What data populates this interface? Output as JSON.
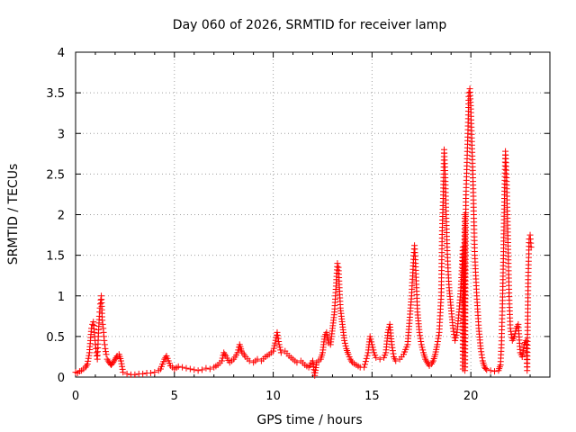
{
  "chart_data": {
    "type": "scatter",
    "title": "Day 060 of 2026, SRMTID for receiver lamp",
    "xlabel": "GPS time / hours",
    "ylabel": "SRMTID / TECUs",
    "xlim": [
      0,
      24
    ],
    "ylim": [
      0,
      4
    ],
    "xticks": [
      0,
      5,
      10,
      15,
      20
    ],
    "yticks": [
      0,
      0.5,
      1,
      1.5,
      2,
      2.5,
      3,
      3.5,
      4
    ],
    "xtick_labels": [
      "0",
      "5",
      "10",
      "15",
      "20"
    ],
    "ytick_labels": [
      "0",
      "0.5",
      "1",
      "1.5",
      "2",
      "2.5",
      "3",
      "3.5",
      "4"
    ],
    "grid": true,
    "marker": "+",
    "series": [
      {
        "name": "SRMTID",
        "color": "#ff0000",
        "points": [
          [
            0.0,
            0.06
          ],
          [
            0.1,
            0.05
          ],
          [
            0.2,
            0.07
          ],
          [
            0.3,
            0.08
          ],
          [
            0.4,
            0.1
          ],
          [
            0.5,
            0.12
          ],
          [
            0.6,
            0.16
          ],
          [
            0.7,
            0.3
          ],
          [
            0.8,
            0.6
          ],
          [
            0.85,
            0.65
          ],
          [
            0.9,
            0.68
          ],
          [
            0.95,
            0.55
          ],
          [
            1.0,
            0.4
          ],
          [
            1.05,
            0.3
          ],
          [
            1.1,
            0.22
          ],
          [
            1.15,
            0.5
          ],
          [
            1.2,
            0.75
          ],
          [
            1.25,
            0.9
          ],
          [
            1.3,
            1.0
          ],
          [
            1.35,
            0.7
          ],
          [
            1.4,
            0.6
          ],
          [
            1.45,
            0.45
          ],
          [
            1.5,
            0.35
          ],
          [
            1.55,
            0.28
          ],
          [
            1.6,
            0.22
          ],
          [
            1.7,
            0.18
          ],
          [
            1.8,
            0.15
          ],
          [
            1.9,
            0.18
          ],
          [
            2.0,
            0.22
          ],
          [
            2.1,
            0.26
          ],
          [
            2.2,
            0.28
          ],
          [
            2.3,
            0.2
          ],
          [
            2.4,
            0.06
          ],
          [
            2.6,
            0.04
          ],
          [
            2.8,
            0.03
          ],
          [
            3.0,
            0.03
          ],
          [
            3.2,
            0.04
          ],
          [
            3.4,
            0.04
          ],
          [
            3.6,
            0.05
          ],
          [
            3.8,
            0.05
          ],
          [
            4.0,
            0.06
          ],
          [
            4.2,
            0.08
          ],
          [
            4.3,
            0.1
          ],
          [
            4.4,
            0.16
          ],
          [
            4.5,
            0.22
          ],
          [
            4.6,
            0.26
          ],
          [
            4.7,
            0.2
          ],
          [
            4.8,
            0.14
          ],
          [
            5.0,
            0.1
          ],
          [
            5.2,
            0.13
          ],
          [
            5.4,
            0.12
          ],
          [
            5.6,
            0.11
          ],
          [
            5.8,
            0.1
          ],
          [
            6.0,
            0.09
          ],
          [
            6.2,
            0.08
          ],
          [
            6.4,
            0.09
          ],
          [
            6.6,
            0.11
          ],
          [
            6.8,
            0.1
          ],
          [
            7.0,
            0.12
          ],
          [
            7.2,
            0.15
          ],
          [
            7.4,
            0.2
          ],
          [
            7.5,
            0.3
          ],
          [
            7.6,
            0.26
          ],
          [
            7.8,
            0.18
          ],
          [
            8.0,
            0.22
          ],
          [
            8.2,
            0.3
          ],
          [
            8.3,
            0.4
          ],
          [
            8.4,
            0.32
          ],
          [
            8.6,
            0.25
          ],
          [
            8.8,
            0.2
          ],
          [
            9.0,
            0.18
          ],
          [
            9.2,
            0.22
          ],
          [
            9.4,
            0.2
          ],
          [
            9.6,
            0.25
          ],
          [
            9.8,
            0.28
          ],
          [
            10.0,
            0.32
          ],
          [
            10.1,
            0.42
          ],
          [
            10.2,
            0.55
          ],
          [
            10.3,
            0.4
          ],
          [
            10.4,
            0.3
          ],
          [
            10.6,
            0.32
          ],
          [
            10.8,
            0.26
          ],
          [
            11.0,
            0.22
          ],
          [
            11.2,
            0.18
          ],
          [
            11.4,
            0.2
          ],
          [
            11.6,
            0.15
          ],
          [
            11.8,
            0.12
          ],
          [
            12.0,
            0.2
          ],
          [
            12.1,
            0.02
          ],
          [
            12.2,
            0.18
          ],
          [
            12.4,
            0.22
          ],
          [
            12.5,
            0.3
          ],
          [
            12.6,
            0.5
          ],
          [
            12.7,
            0.55
          ],
          [
            12.8,
            0.42
          ],
          [
            12.9,
            0.4
          ],
          [
            13.0,
            0.6
          ],
          [
            13.1,
            0.8
          ],
          [
            13.2,
            1.2
          ],
          [
            13.25,
            1.4
          ],
          [
            13.3,
            1.35
          ],
          [
            13.35,
            1.1
          ],
          [
            13.4,
            0.85
          ],
          [
            13.5,
            0.65
          ],
          [
            13.6,
            0.45
          ],
          [
            13.7,
            0.35
          ],
          [
            13.8,
            0.28
          ],
          [
            13.9,
            0.22
          ],
          [
            14.0,
            0.18
          ],
          [
            14.2,
            0.15
          ],
          [
            14.4,
            0.12
          ],
          [
            14.6,
            0.12
          ],
          [
            14.8,
            0.3
          ],
          [
            14.9,
            0.5
          ],
          [
            15.0,
            0.4
          ],
          [
            15.1,
            0.3
          ],
          [
            15.2,
            0.24
          ],
          [
            15.4,
            0.22
          ],
          [
            15.6,
            0.24
          ],
          [
            15.7,
            0.3
          ],
          [
            15.8,
            0.55
          ],
          [
            15.9,
            0.65
          ],
          [
            16.0,
            0.4
          ],
          [
            16.1,
            0.25
          ],
          [
            16.2,
            0.2
          ],
          [
            16.4,
            0.22
          ],
          [
            16.6,
            0.28
          ],
          [
            16.8,
            0.4
          ],
          [
            16.9,
            0.7
          ],
          [
            17.0,
            1.0
          ],
          [
            17.1,
            1.45
          ],
          [
            17.15,
            1.62
          ],
          [
            17.2,
            1.4
          ],
          [
            17.25,
            1.1
          ],
          [
            17.3,
            0.8
          ],
          [
            17.4,
            0.55
          ],
          [
            17.5,
            0.4
          ],
          [
            17.6,
            0.3
          ],
          [
            17.7,
            0.22
          ],
          [
            17.8,
            0.18
          ],
          [
            17.9,
            0.14
          ],
          [
            18.0,
            0.16
          ],
          [
            18.1,
            0.2
          ],
          [
            18.2,
            0.28
          ],
          [
            18.3,
            0.4
          ],
          [
            18.4,
            0.55
          ],
          [
            18.5,
            1.0
          ],
          [
            18.55,
            1.8
          ],
          [
            18.6,
            2.2
          ],
          [
            18.65,
            2.8
          ],
          [
            18.7,
            2.5
          ],
          [
            18.75,
            2.0
          ],
          [
            18.8,
            1.6
          ],
          [
            18.85,
            1.3
          ],
          [
            18.9,
            1.1
          ],
          [
            19.0,
            0.85
          ],
          [
            19.1,
            0.6
          ],
          [
            19.2,
            0.45
          ],
          [
            19.3,
            0.55
          ],
          [
            19.4,
            0.8
          ],
          [
            19.5,
            1.1
          ],
          [
            19.6,
            1.6
          ],
          [
            19.7,
            2.0
          ],
          [
            19.75,
            2.2
          ],
          [
            19.8,
            2.6
          ],
          [
            19.85,
            3.0
          ],
          [
            19.9,
            3.5
          ],
          [
            19.95,
            3.55
          ],
          [
            20.0,
            3.3
          ],
          [
            20.05,
            2.9
          ],
          [
            20.1,
            2.5
          ],
          [
            20.15,
            2.0
          ],
          [
            20.2,
            1.5
          ],
          [
            20.3,
            1.0
          ],
          [
            20.4,
            0.6
          ],
          [
            20.5,
            0.35
          ],
          [
            19.6,
            0.1
          ],
          [
            19.7,
            0.08
          ],
          [
            20.6,
            0.2
          ],
          [
            20.7,
            0.12
          ],
          [
            20.8,
            0.09
          ],
          [
            21.0,
            0.08
          ],
          [
            21.2,
            0.07
          ],
          [
            21.4,
            0.08
          ],
          [
            21.5,
            0.15
          ],
          [
            21.55,
            0.4
          ],
          [
            21.6,
            0.9
          ],
          [
            21.65,
            1.5
          ],
          [
            21.7,
            2.2
          ],
          [
            21.75,
            2.78
          ],
          [
            21.8,
            2.5
          ],
          [
            21.85,
            2.0
          ],
          [
            21.9,
            1.4
          ],
          [
            21.95,
            0.9
          ],
          [
            22.0,
            0.6
          ],
          [
            22.1,
            0.45
          ],
          [
            22.2,
            0.5
          ],
          [
            22.3,
            0.6
          ],
          [
            22.4,
            0.65
          ],
          [
            22.5,
            0.3
          ],
          [
            22.6,
            0.25
          ],
          [
            22.7,
            0.4
          ],
          [
            22.8,
            0.45
          ],
          [
            22.85,
            0.08
          ],
          [
            22.9,
            1.2
          ],
          [
            22.95,
            1.7
          ],
          [
            23.0,
            1.75
          ],
          [
            23.05,
            1.6
          ]
        ]
      }
    ]
  }
}
